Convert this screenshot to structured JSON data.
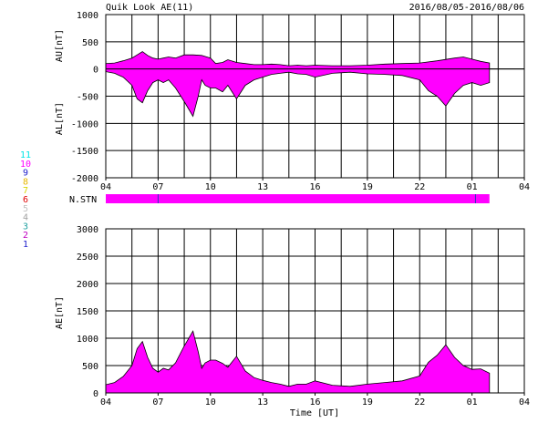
{
  "header": {
    "title": "Quik Look AE(11)",
    "date_range": "2016/08/05-2016/08/06"
  },
  "x_axis": {
    "label": "Time [UT]",
    "tick_labels": [
      "04",
      "07",
      "10",
      "13",
      "16",
      "19",
      "22",
      "01",
      "04"
    ]
  },
  "stations": {
    "label": "N.STN",
    "color": "#ff00ff",
    "legend": [
      {
        "value": "11",
        "color": "#00e5e5"
      },
      {
        "value": "10",
        "color": "#ff00ff"
      },
      {
        "value": "9",
        "color": "#2020cc"
      },
      {
        "value": "8",
        "color": "#e6b800"
      },
      {
        "value": "7",
        "color": "#d8d800"
      },
      {
        "value": "6",
        "color": "#e00000"
      },
      {
        "value": "5",
        "color": "#c0c0c0"
      },
      {
        "value": "4",
        "color": "#a0a0a0"
      },
      {
        "value": "3",
        "color": "#20a0a0"
      },
      {
        "value": "2",
        "color": "#c000c0"
      },
      {
        "value": "1",
        "color": "#2020cc"
      }
    ],
    "segments": [
      {
        "start_hour": 0,
        "end_hour": 22,
        "count": 10
      }
    ]
  },
  "chart_data": [
    {
      "type": "area",
      "panel": "AU/AL",
      "ylabels": [
        "AU[nT]",
        "AL[nT]"
      ],
      "ylim": [
        -2000,
        1000
      ],
      "yticks": [
        1000,
        500,
        0,
        -500,
        -1000,
        -1500,
        -2000
      ],
      "x_unit": "hours after 04 UT",
      "xlim": [
        0,
        24
      ],
      "fill_color": "#ff00ff",
      "grid": true,
      "au": {
        "x": [
          0,
          0.5,
          1,
          1.5,
          1.8,
          2.1,
          2.4,
          2.7,
          3.0,
          3.3,
          3.6,
          4.0,
          4.5,
          5.0,
          5.5,
          6.0,
          6.3,
          6.7,
          7.0,
          7.5,
          8.0,
          8.5,
          9.0,
          9.5,
          10.0,
          10.5,
          11.0,
          11.5,
          12.0,
          13.0,
          14.0,
          15.0,
          16.0,
          17.0,
          18.0,
          19.0,
          20.0,
          20.5,
          21.0,
          21.5,
          22.0
        ],
        "y": [
          100,
          110,
          150,
          200,
          260,
          320,
          250,
          200,
          180,
          200,
          220,
          200,
          260,
          260,
          250,
          200,
          100,
          120,
          170,
          120,
          100,
          80,
          80,
          90,
          80,
          60,
          70,
          60,
          70,
          60,
          60,
          70,
          90,
          100,
          110,
          150,
          200,
          220,
          180,
          140,
          110
        ]
      },
      "al": {
        "x": [
          0,
          0.5,
          1,
          1.5,
          1.8,
          2.1,
          2.4,
          2.7,
          3.0,
          3.3,
          3.6,
          4.0,
          4.5,
          5.0,
          5.3,
          5.5,
          5.7,
          6.0,
          6.3,
          6.7,
          7.0,
          7.5,
          8.0,
          8.5,
          9.0,
          9.5,
          10.0,
          10.5,
          11.0,
          11.5,
          12.0,
          13.0,
          14.0,
          15.0,
          16.0,
          17.0,
          18.0,
          18.5,
          19.0,
          19.5,
          20.0,
          20.5,
          21.0,
          21.5,
          22.0
        ],
        "y": [
          -50,
          -80,
          -150,
          -300,
          -550,
          -620,
          -400,
          -250,
          -200,
          -250,
          -200,
          -350,
          -600,
          -870,
          -500,
          -200,
          -300,
          -350,
          -350,
          -420,
          -300,
          -550,
          -300,
          -200,
          -150,
          -100,
          -80,
          -60,
          -90,
          -100,
          -150,
          -80,
          -60,
          -90,
          -100,
          -120,
          -200,
          -400,
          -500,
          -680,
          -450,
          -300,
          -250,
          -300,
          -250
        ]
      }
    },
    {
      "type": "area",
      "panel": "AE",
      "ylabel": "AE[nT]",
      "ylim": [
        0,
        3000
      ],
      "yticks": [
        3000,
        2500,
        2000,
        1500,
        1000,
        500,
        0
      ],
      "x_unit": "hours after 04 UT",
      "xlim": [
        0,
        24
      ],
      "fill_color": "#ff00ff",
      "grid": true,
      "x": [
        0,
        0.5,
        1,
        1.5,
        1.8,
        2.1,
        2.4,
        2.7,
        3.0,
        3.3,
        3.6,
        4.0,
        4.5,
        5.0,
        5.3,
        5.5,
        5.7,
        6.0,
        6.3,
        6.7,
        7.0,
        7.5,
        8.0,
        8.5,
        9.0,
        9.5,
        10.0,
        10.5,
        11.0,
        11.5,
        12.0,
        13.0,
        14.0,
        15.0,
        16.0,
        17.0,
        18.0,
        18.5,
        19.0,
        19.5,
        20.0,
        20.5,
        21.0,
        21.5,
        22.0
      ],
      "y": [
        150,
        190,
        300,
        500,
        810,
        940,
        650,
        450,
        380,
        450,
        420,
        550,
        860,
        1130,
        750,
        450,
        550,
        600,
        600,
        540,
        470,
        670,
        400,
        280,
        230,
        190,
        160,
        120,
        160,
        160,
        220,
        140,
        120,
        160,
        190,
        220,
        310,
        560,
        690,
        880,
        650,
        500,
        430,
        440,
        360
      ]
    }
  ]
}
